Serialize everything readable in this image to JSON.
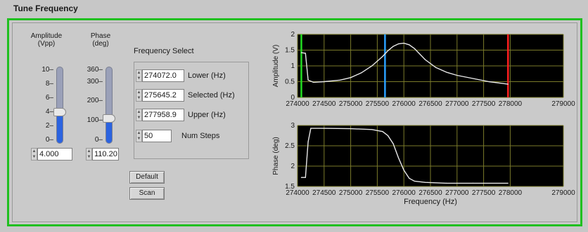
{
  "window": {
    "title": "Tune Frequency"
  },
  "amplitude": {
    "label_line1": "Amplitude",
    "label_line2": "(Vpp)",
    "ticks": [
      "10",
      "8",
      "6",
      "4",
      "2",
      "0"
    ],
    "value": "4.000",
    "max": 10,
    "level": 4.0
  },
  "phase": {
    "label_line1": "Phase",
    "label_line2": "(deg)",
    "ticks": [
      "360",
      "300",
      "200",
      "100",
      "0"
    ],
    "value": "110.20",
    "max": 360,
    "level": 110.2
  },
  "frequency_select": {
    "title": "Frequency Select",
    "lower": {
      "value": "274072.0",
      "label": "Lower (Hz)"
    },
    "selected": {
      "value": "275645.2",
      "label": "Selected (Hz)"
    },
    "upper": {
      "value": "277958.9",
      "label": "Upper (Hz)"
    },
    "steps": {
      "value": "50",
      "label": "Num Steps"
    }
  },
  "buttons": {
    "default_label": "Default",
    "scan_label": "Scan"
  },
  "colors": {
    "frame_green": "#20c020",
    "plot_bg": "#000000",
    "grid": "#7a7a2a",
    "curve": "#e8e8e8",
    "cursor_lower": "#22dd22",
    "cursor_selected": "#2aa0ff",
    "cursor_upper": "#ff2020",
    "slider_fill": "#2b63e0"
  },
  "chart_data": [
    {
      "type": "line",
      "xlabel": "",
      "ylabel": "Amplitude (V)",
      "xlim": [
        274000,
        279000
      ],
      "ylim": [
        0,
        2
      ],
      "x_ticks": [
        "274000",
        "274500",
        "275000",
        "275500",
        "276000",
        "276500",
        "277000",
        "277500",
        "278000",
        "279000"
      ],
      "y_ticks": [
        "2",
        "1.5",
        "1",
        "0.5",
        "0"
      ],
      "cursors": [
        274072.0,
        275645.2,
        277958.9
      ],
      "series": [
        {
          "x": [
            274072,
            274150,
            274200,
            274300,
            274500,
            274800,
            275000,
            275200,
            275400,
            275600,
            275700,
            275800,
            275900,
            276000,
            276100,
            276200,
            276400,
            276600,
            276800,
            277000,
            277300,
            277600,
            277958
          ],
          "values": [
            1.42,
            1.4,
            0.55,
            0.48,
            0.5,
            0.55,
            0.63,
            0.78,
            1.0,
            1.3,
            1.48,
            1.62,
            1.7,
            1.72,
            1.67,
            1.55,
            1.2,
            0.95,
            0.8,
            0.7,
            0.6,
            0.5,
            0.42
          ]
        }
      ]
    },
    {
      "type": "line",
      "xlabel": "Frequency (Hz)",
      "ylabel": "Phase (deg)",
      "xlim": [
        274000,
        279000
      ],
      "ylim": [
        1.5,
        3
      ],
      "x_ticks": [
        "274000",
        "274500",
        "275000",
        "275500",
        "276000",
        "276500",
        "277000",
        "277500",
        "278000",
        "279000"
      ],
      "y_ticks": [
        "3",
        "2.5",
        "2",
        "1.5"
      ],
      "series": [
        {
          "x": [
            274072,
            274150,
            274200,
            274250,
            274500,
            275000,
            275400,
            275600,
            275700,
            275800,
            275900,
            276000,
            276100,
            276200,
            276400,
            276800,
            277300,
            277958
          ],
          "values": [
            1.72,
            1.72,
            2.6,
            2.93,
            2.93,
            2.92,
            2.9,
            2.85,
            2.75,
            2.55,
            2.2,
            1.9,
            1.7,
            1.63,
            1.6,
            1.58,
            1.58,
            1.58
          ]
        }
      ]
    }
  ]
}
